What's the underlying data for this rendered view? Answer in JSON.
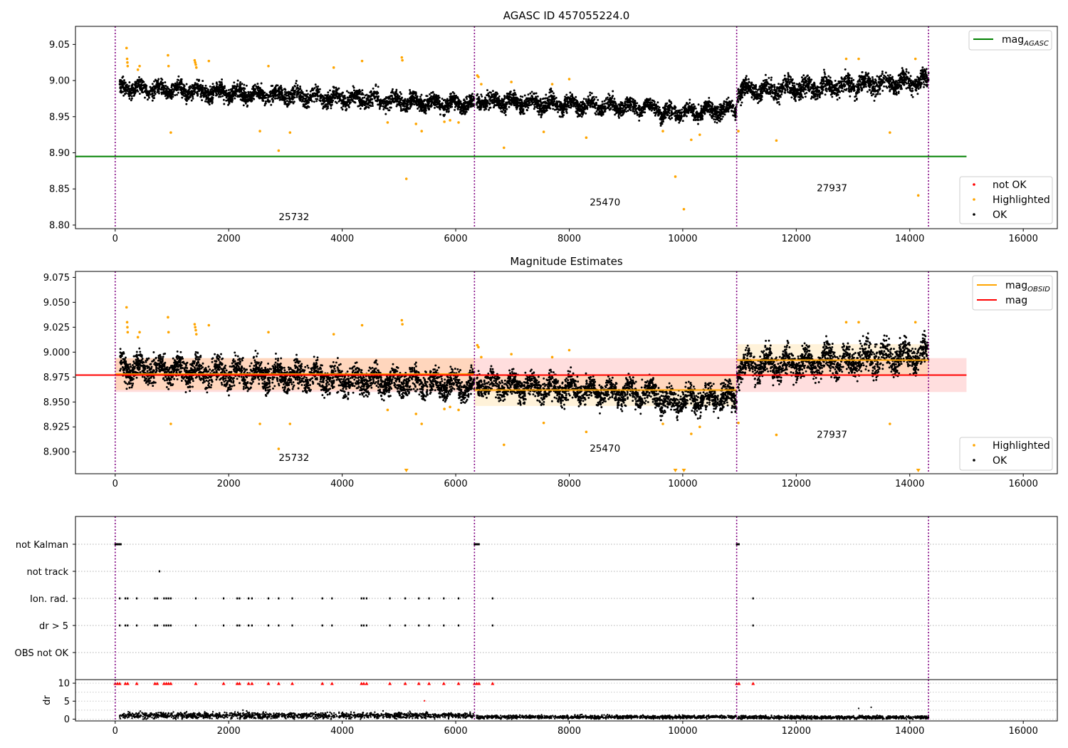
{
  "chart_data": [
    {
      "type": "scatter",
      "title": "AGASC ID 457055224.0",
      "xlim": [
        -700,
        16600
      ],
      "ylim": [
        8.795,
        9.075
      ],
      "xticks": [
        0,
        2000,
        4000,
        6000,
        8000,
        10000,
        12000,
        14000,
        16000
      ],
      "yticks": [
        8.8,
        8.85,
        8.9,
        8.95,
        9.0,
        9.05
      ],
      "ytick_labels": [
        "8.80",
        "8.85",
        "8.90",
        "8.95",
        "9.00",
        "9.05"
      ],
      "obsid_boundaries": [
        0,
        6330,
        10950,
        14330
      ],
      "obsid_labels": [
        {
          "text": "25732",
          "x": 3150,
          "y": 8.807
        },
        {
          "text": "25470",
          "x": 8630,
          "y": 8.827
        },
        {
          "text": "27937",
          "x": 12630,
          "y": 8.847
        }
      ],
      "reference_line": {
        "name": "mag_AGASC",
        "y": 8.895,
        "x": [
          -700,
          15000
        ],
        "color": "#008000"
      },
      "ok_series": {
        "color": "#000000",
        "segments": [
          {
            "x": [
              80,
              6330
            ],
            "y_start": 8.99,
            "y_end": 8.967,
            "spread": 0.01
          },
          {
            "x": [
              6370,
              9600
            ],
            "y_start": 8.972,
            "y_end": 8.962,
            "spread": 0.01
          },
          {
            "x": [
              9600,
              10950
            ],
            "y_start": 8.955,
            "y_end": 8.96,
            "spread": 0.01
          },
          {
            "x": [
              10960,
              14330
            ],
            "y_start": 8.985,
            "y_end": 9.0,
            "spread": 0.012
          }
        ]
      },
      "highlighted_points": [
        [
          200,
          9.045
        ],
        [
          210,
          9.03
        ],
        [
          215,
          9.025
        ],
        [
          220,
          9.02
        ],
        [
          400,
          9.015
        ],
        [
          430,
          9.02
        ],
        [
          930,
          9.035
        ],
        [
          940,
          9.02
        ],
        [
          1400,
          9.028
        ],
        [
          1410,
          9.025
        ],
        [
          1420,
          9.022
        ],
        [
          1430,
          9.018
        ],
        [
          1650,
          9.027
        ],
        [
          980,
          8.928
        ],
        [
          2550,
          8.93
        ],
        [
          2700,
          9.02
        ],
        [
          2880,
          8.903
        ],
        [
          3080,
          8.928
        ],
        [
          3850,
          9.018
        ],
        [
          4350,
          9.027
        ],
        [
          4800,
          8.942
        ],
        [
          5050,
          9.032
        ],
        [
          5060,
          9.028
        ],
        [
          5130,
          8.864
        ],
        [
          5300,
          8.94
        ],
        [
          5400,
          8.93
        ],
        [
          5800,
          8.943
        ],
        [
          5900,
          8.945
        ],
        [
          6050,
          8.942
        ],
        [
          6380,
          9.007
        ],
        [
          6400,
          9.005
        ],
        [
          6450,
          8.995
        ],
        [
          6850,
          8.907
        ],
        [
          6980,
          8.998
        ],
        [
          7550,
          8.929
        ],
        [
          7700,
          8.995
        ],
        [
          8000,
          9.002
        ],
        [
          8300,
          8.921
        ],
        [
          9650,
          8.93
        ],
        [
          9870,
          8.867
        ],
        [
          10020,
          8.822
        ],
        [
          10150,
          8.918
        ],
        [
          10300,
          8.925
        ],
        [
          10980,
          8.93
        ],
        [
          11650,
          8.917
        ],
        [
          12880,
          9.03
        ],
        [
          13100,
          9.03
        ],
        [
          13650,
          8.928
        ],
        [
          14100,
          9.03
        ],
        [
          14150,
          8.841
        ]
      ],
      "legends": [
        {
          "placement": "upper-right",
          "entries": [
            {
              "label": "mag",
              "subscript": "AGASC",
              "kind": "line",
              "color": "#008000"
            }
          ]
        },
        {
          "placement": "lower-right",
          "entries": [
            {
              "label": "not OK",
              "kind": "marker",
              "color": "#ff0000"
            },
            {
              "label": "Highlighted",
              "kind": "marker",
              "color": "#ffa500"
            },
            {
              "label": "OK",
              "kind": "marker",
              "color": "#000000"
            }
          ]
        }
      ]
    },
    {
      "type": "scatter",
      "title": "Magnitude Estimates",
      "xlim": [
        -700,
        16600
      ],
      "ylim": [
        8.878,
        9.081
      ],
      "xticks": [
        0,
        2000,
        4000,
        6000,
        8000,
        10000,
        12000,
        14000,
        16000
      ],
      "yticks": [
        8.9,
        8.925,
        8.95,
        8.975,
        9.0,
        9.025,
        9.05,
        9.075
      ],
      "ytick_labels": [
        "8.900",
        "8.925",
        "8.950",
        "8.975",
        "9.000",
        "9.025",
        "9.050",
        "9.075"
      ],
      "obsid_boundaries": [
        0,
        6330,
        10950,
        14330
      ],
      "obsid_labels": [
        {
          "text": "25732",
          "x": 3150,
          "y": 8.891
        },
        {
          "text": "25470",
          "x": 8630,
          "y": 8.9
        },
        {
          "text": "27937",
          "x": 12630,
          "y": 8.914
        }
      ],
      "mag": {
        "name": "mag",
        "y": 8.977,
        "band": [
          8.96,
          8.994
        ],
        "x": [
          -700,
          15000
        ],
        "color": "#ff0000"
      },
      "mag_obsid": [
        {
          "x": [
            0,
            6330
          ],
          "y": 8.978,
          "band": [
            8.962,
            8.994
          ]
        },
        {
          "x": [
            6330,
            10950
          ],
          "y": 8.962,
          "band": [
            8.946,
            8.978
          ]
        },
        {
          "x": [
            10950,
            14330
          ],
          "y": 8.992,
          "band": [
            8.976,
            9.008
          ]
        }
      ],
      "mag_obsid_color": "#ffa500",
      "ok_series": {
        "color": "#000000",
        "segments": [
          {
            "x": [
              80,
              6330
            ],
            "y_start": 8.985,
            "y_end": 8.966,
            "spread": 0.012
          },
          {
            "x": [
              6370,
              9600
            ],
            "y_start": 8.968,
            "y_end": 8.958,
            "spread": 0.011
          },
          {
            "x": [
              9600,
              10950
            ],
            "y_start": 8.95,
            "y_end": 8.956,
            "spread": 0.011
          },
          {
            "x": [
              10960,
              14330
            ],
            "y_start": 8.985,
            "y_end": 8.998,
            "spread": 0.013
          }
        ]
      },
      "highlighted_points": [
        [
          200,
          9.045
        ],
        [
          210,
          9.03
        ],
        [
          215,
          9.025
        ],
        [
          220,
          9.02
        ],
        [
          400,
          9.015
        ],
        [
          430,
          9.02
        ],
        [
          930,
          9.035
        ],
        [
          940,
          9.02
        ],
        [
          1400,
          9.028
        ],
        [
          1410,
          9.025
        ],
        [
          1420,
          9.022
        ],
        [
          1430,
          9.018
        ],
        [
          1650,
          9.027
        ],
        [
          980,
          8.928
        ],
        [
          2550,
          8.928
        ],
        [
          2700,
          9.02
        ],
        [
          2880,
          8.903
        ],
        [
          3080,
          8.928
        ],
        [
          3850,
          9.018
        ],
        [
          4350,
          9.027
        ],
        [
          4800,
          8.942
        ],
        [
          5050,
          9.032
        ],
        [
          5060,
          9.028
        ],
        [
          5300,
          8.938
        ],
        [
          5400,
          8.928
        ],
        [
          5800,
          8.943
        ],
        [
          5900,
          8.945
        ],
        [
          6050,
          8.942
        ],
        [
          6380,
          9.007
        ],
        [
          6400,
          9.005
        ],
        [
          6450,
          8.995
        ],
        [
          6850,
          8.907
        ],
        [
          6980,
          8.998
        ],
        [
          7550,
          8.929
        ],
        [
          7700,
          8.995
        ],
        [
          8000,
          9.002
        ],
        [
          8300,
          8.92
        ],
        [
          9650,
          8.928
        ],
        [
          10150,
          8.918
        ],
        [
          10300,
          8.925
        ],
        [
          10980,
          8.929
        ],
        [
          11650,
          8.917
        ],
        [
          12880,
          9.03
        ],
        [
          13100,
          9.03
        ],
        [
          13650,
          8.928
        ],
        [
          14100,
          9.03
        ]
      ],
      "off_scale_markers": [
        5130,
        9870,
        10020,
        14150
      ],
      "legends": [
        {
          "placement": "upper-right",
          "entries": [
            {
              "label": "mag",
              "subscript": "OBSID",
              "kind": "line",
              "color": "#ffa500"
            },
            {
              "label": "mag",
              "kind": "line",
              "color": "#ff0000"
            }
          ]
        },
        {
          "placement": "lower-right",
          "entries": [
            {
              "label": "Highlighted",
              "kind": "marker",
              "color": "#ffa500"
            },
            {
              "label": "OK",
              "kind": "marker",
              "color": "#000000"
            }
          ]
        }
      ]
    },
    {
      "type": "scatter",
      "title": "",
      "xlim": [
        -700,
        16600
      ],
      "xticks": [
        0,
        2000,
        4000,
        6000,
        8000,
        10000,
        12000,
        14000,
        16000
      ],
      "flag_rows": [
        "not Kalman",
        "not track",
        "Ion. rad.",
        "dr > 5",
        "OBS not OK"
      ],
      "flags": {
        "not Kalman": [
          0,
          20,
          40,
          60,
          80,
          100,
          6330,
          6350,
          6370,
          6390,
          6410,
          10950,
          10970,
          10990
        ],
        "not track": [
          780
        ],
        "Ion. rad.": [
          80,
          180,
          220,
          380,
          700,
          740,
          860,
          900,
          940,
          980,
          1420,
          1910,
          2150,
          2190,
          2350,
          2410,
          2700,
          2880,
          3120,
          3650,
          3820,
          4340,
          4380,
          4430,
          4840,
          5110,
          5350,
          5530,
          5790,
          6050,
          6650,
          11240
        ],
        "dr > 5": [
          80,
          180,
          220,
          380,
          700,
          740,
          860,
          900,
          940,
          980,
          1420,
          1910,
          2150,
          2190,
          2350,
          2410,
          2700,
          2880,
          3120,
          3650,
          3820,
          4340,
          4380,
          4430,
          4840,
          5110,
          5350,
          5530,
          5790,
          6050,
          6650,
          11240
        ],
        "OBS not OK": []
      },
      "dr_panel": {
        "ylabel": "dr",
        "ylim": [
          -0.5,
          11
        ],
        "yticks": [
          0,
          5,
          10
        ],
        "clip_value": 10,
        "clipped_points": [
          0,
          40,
          80,
          180,
          220,
          380,
          700,
          740,
          860,
          900,
          940,
          980,
          1420,
          1910,
          2150,
          2190,
          2350,
          2410,
          2700,
          2880,
          3120,
          3650,
          3820,
          4340,
          4380,
          4430,
          4840,
          5110,
          5350,
          5530,
          5790,
          6050,
          6330,
          6370,
          6410,
          6650,
          10950,
          10990,
          11240
        ],
        "outliers": [
          [
            2250,
            2.5
          ],
          [
            5450,
            5.1
          ],
          [
            13100,
            3.0
          ],
          [
            13320,
            3.3
          ]
        ],
        "baseline_segments": [
          {
            "x": [
              80,
              6330
            ],
            "level": 1.0,
            "spread": 0.7
          },
          {
            "x": [
              6370,
              10950
            ],
            "level": 0.6,
            "spread": 0.4
          },
          {
            "x": [
              10960,
              14330
            ],
            "level": 0.5,
            "spread": 0.4
          }
        ]
      }
    }
  ]
}
